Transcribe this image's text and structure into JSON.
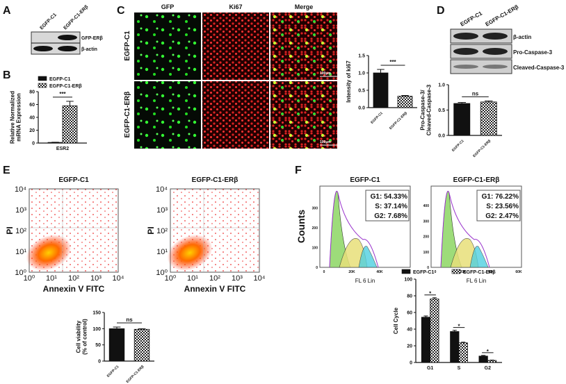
{
  "panels": {
    "labels": [
      "A",
      "B",
      "C",
      "D",
      "E",
      "F"
    ],
    "blot_a": {
      "lanes": [
        "EGFP-C1",
        "EGFP-C1-ERβ"
      ],
      "bands": [
        "GFP-ERβ",
        "β-actin"
      ]
    },
    "micro": {
      "columns": [
        "GFP",
        "Ki67",
        "Merge"
      ],
      "rows": [
        "EGFP-C1",
        "EGFP-C1-ERβ"
      ],
      "scale_bar": "100μm"
    },
    "blot_d": {
      "lanes": [
        "EGFP-C1",
        "EGFP-C1-ERβ"
      ],
      "bands": [
        "β-actin",
        "Pro-Caspase-3",
        "Cleaved-Caspase-3"
      ]
    },
    "flow": {
      "plots": [
        {
          "title": "EGFP-C1"
        },
        {
          "title": "EGFP-C1-ERβ"
        }
      ],
      "x_label": "Annexin V  FITC",
      "y_label": "PI",
      "ticks": [
        "10⁰",
        "10¹",
        "10²",
        "10³",
        "10⁴"
      ]
    },
    "hist": {
      "plots": [
        {
          "title": "EGFP-C1",
          "yticks": [
            "0",
            "100",
            "200",
            "300"
          ],
          "stats": [
            "G1: 54.33%",
            "S: 37.14%",
            "G2:  7.68%"
          ]
        },
        {
          "title": "EGFP-C1-ERβ",
          "yticks": [
            "0",
            "100",
            "200",
            "300",
            "400"
          ],
          "stats": [
            "G1: 76.22%",
            "S: 23.56%",
            "G2:  2.47%"
          ]
        }
      ],
      "x_label": "FL 6 Lin",
      "y_label": "Counts",
      "xticks": [
        "0",
        "20K",
        "40K",
        "60K"
      ]
    }
  },
  "chart_data": [
    {
      "type": "bar",
      "ylabel": [
        "Relative Normalized",
        "mRNA Expression"
      ],
      "categories": [
        "ESR2"
      ],
      "series": [
        {
          "name": "EGFP-C1",
          "color": "#111111",
          "values": [
            1
          ],
          "errors": [
            0.3
          ]
        },
        {
          "name": "EGFP-C1-ERβ",
          "color": "#111111",
          "pattern": "checker",
          "values": [
            58
          ],
          "errors": [
            7
          ]
        }
      ],
      "ylim": [
        0,
        80
      ],
      "yticks": [
        0,
        20,
        40,
        60,
        80
      ],
      "legend": "top",
      "annotation": "***"
    },
    {
      "type": "bar",
      "ylabel": [
        "Intensity of ki67"
      ],
      "categories": [
        "EGFP-C1",
        "EGFP-C1-ERβ"
      ],
      "values": [
        1.0,
        0.33
      ],
      "errors": [
        0.1,
        0.02
      ],
      "bar_styles": [
        "solid",
        "checker"
      ],
      "ylim": [
        0,
        1.5
      ],
      "yticks": [
        {
          "value": 0,
          "label": "0.0"
        },
        0.5,
        {
          "value": 1,
          "label": "1.0"
        },
        1.5
      ],
      "annotation": "***"
    },
    {
      "type": "bar",
      "ylabel": [
        "Pro-Caspase-3/",
        "Cleaved-Caspase-3"
      ],
      "categories": [
        "EGFP-C1",
        "EGFP-C1-ERβ"
      ],
      "values": [
        0.63,
        0.66
      ],
      "errors": [
        0.02,
        0.02
      ],
      "bar_styles": [
        "solid",
        "checker"
      ],
      "ylim": [
        0,
        1.0
      ],
      "yticks": [
        {
          "value": 0,
          "label": "0.0"
        },
        0.5,
        {
          "value": 1,
          "label": "1.0"
        }
      ],
      "annotation": "ns"
    },
    {
      "type": "bar",
      "ylabel": [
        "Cell viability",
        "(% of control)"
      ],
      "categories": [
        "EGFP-C1",
        "EGFP-C1-ERβ"
      ],
      "values": [
        100,
        98
      ],
      "errors": [
        5,
        2
      ],
      "bar_styles": [
        "solid",
        "checker"
      ],
      "ylim": [
        0,
        150
      ],
      "yticks": [
        0,
        50,
        100,
        150
      ],
      "annotation": "ns"
    },
    {
      "type": "bar",
      "ylabel": [
        "Cell   Cycle"
      ],
      "categories": [
        "G1",
        "S",
        "G2"
      ],
      "series": [
        {
          "name": "EGFP-C1",
          "color": "#111111",
          "values": [
            54.33,
            37.14,
            7.68
          ],
          "errors": [
            1.5,
            1.5,
            0.8
          ]
        },
        {
          "name": "EGFP-C1-ERβ",
          "color": "#111111",
          "pattern": "checker",
          "values": [
            76.22,
            23.56,
            2.47
          ],
          "errors": [
            1.5,
            0.8,
            0.4
          ]
        }
      ],
      "ylim": [
        0,
        100
      ],
      "yticks": [
        0,
        20,
        40,
        60,
        80,
        100
      ],
      "legend": "top",
      "annotations": [
        "*",
        "*",
        "*"
      ]
    }
  ]
}
